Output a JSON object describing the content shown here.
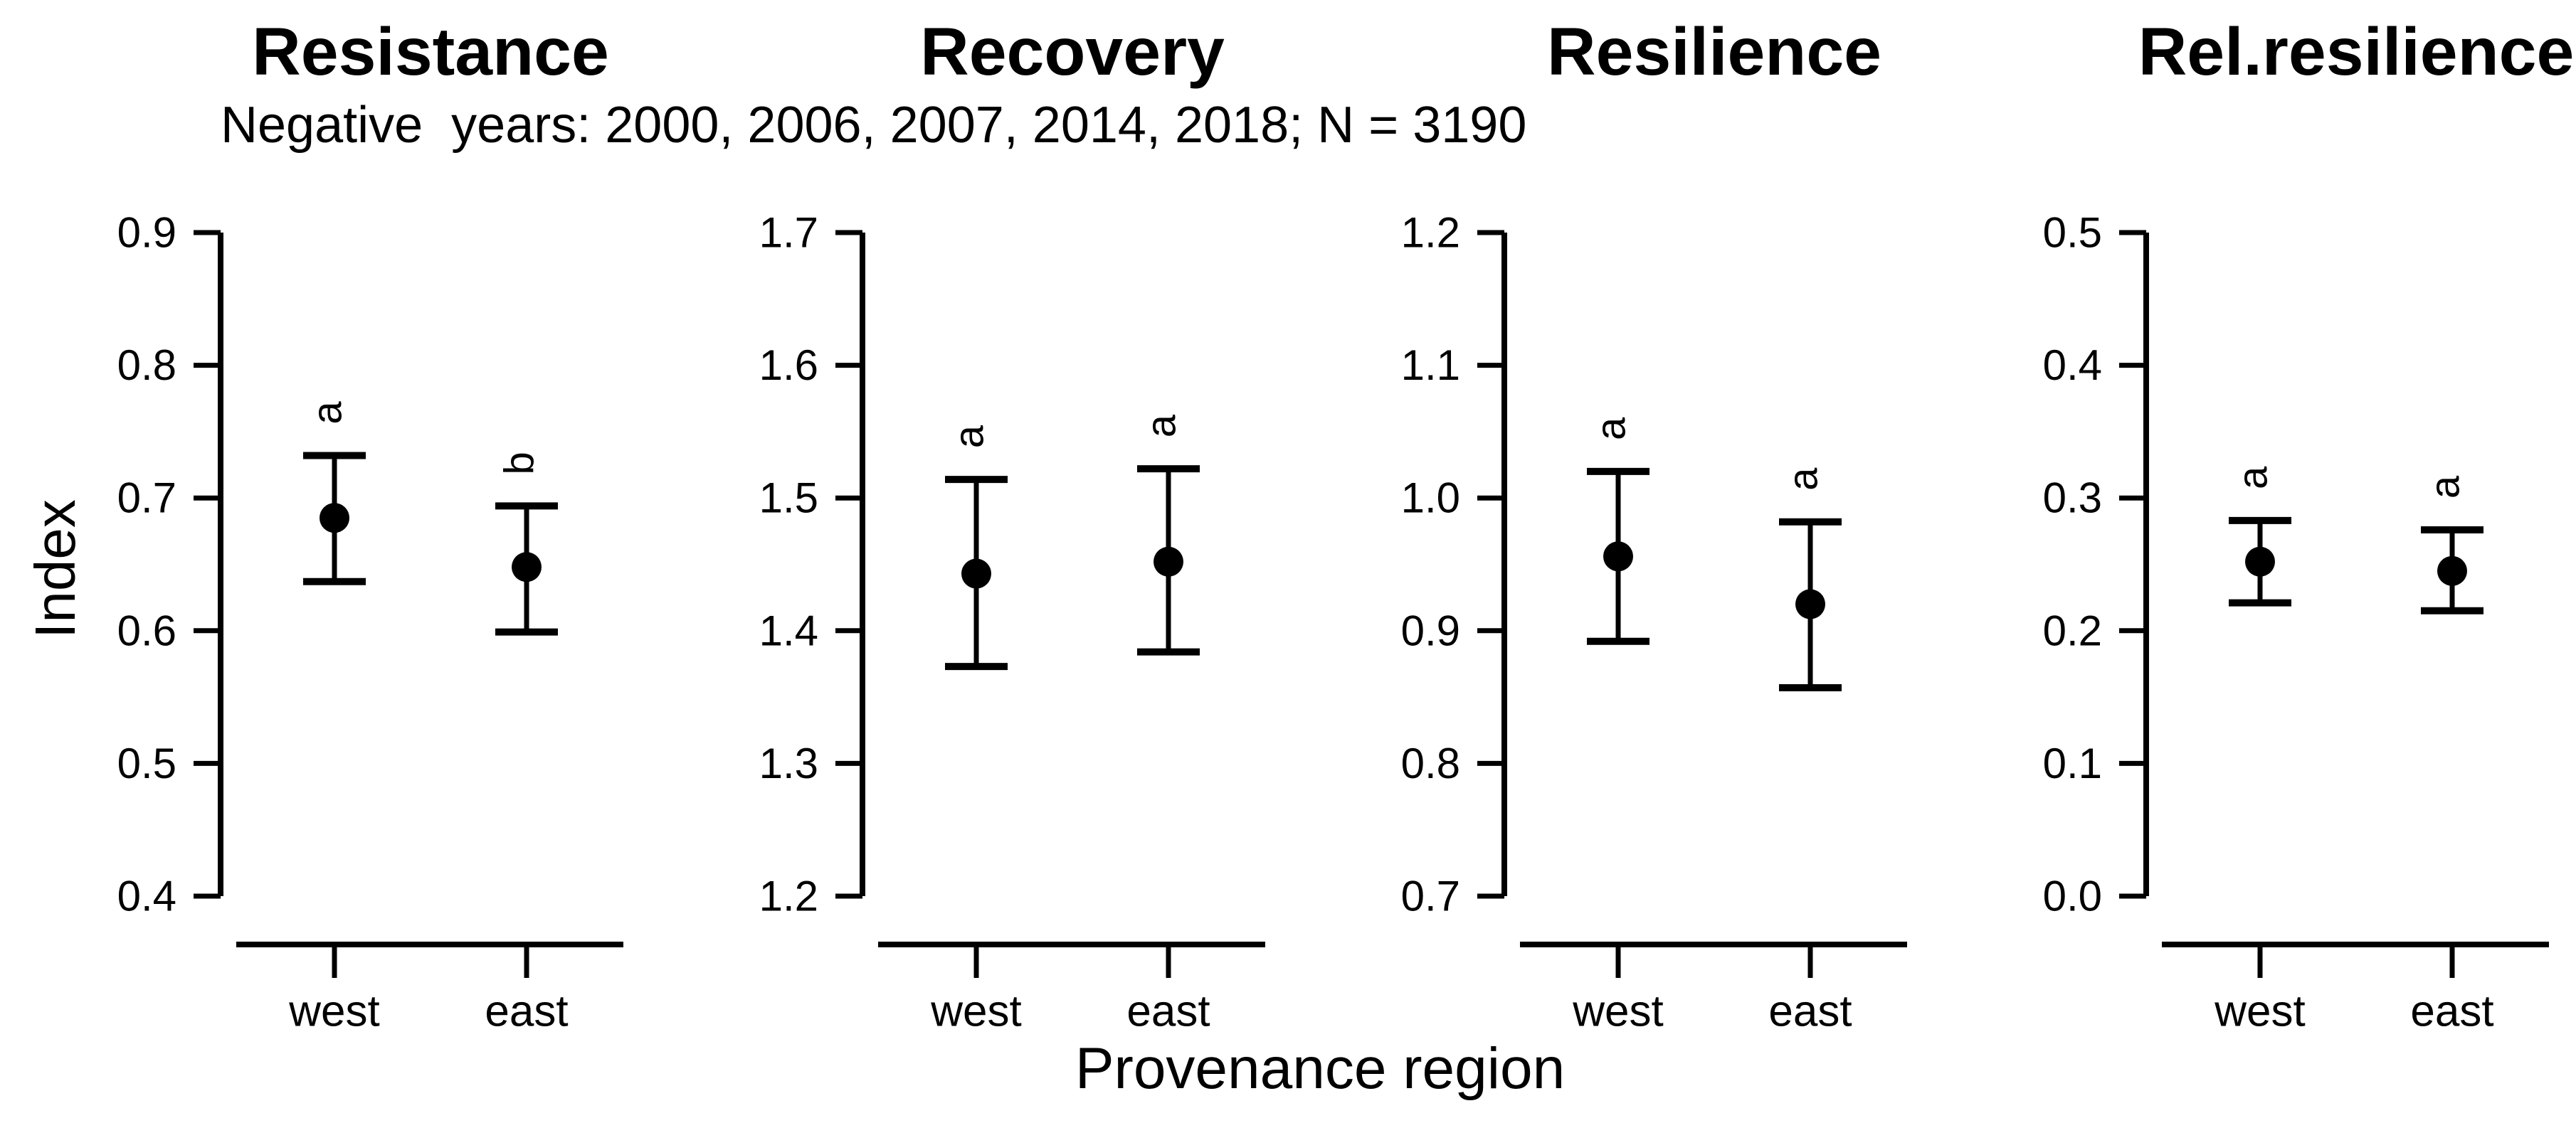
{
  "chart_data": {
    "type": "scatter",
    "subtitle": "Negative  years: 2000, 2006, 2007, 2014, 2018; N = 3190",
    "xlabel": "Provenance region",
    "ylabel": "Index",
    "categories": [
      "west",
      "east"
    ],
    "legend": "none",
    "grid": false,
    "marker": "filled-circle-with-error-bars",
    "panels": [
      {
        "title": "Resistance",
        "ylim": [
          0.4,
          0.9
        ],
        "yticks": [
          0.4,
          0.5,
          0.6,
          0.7,
          0.8,
          0.9
        ],
        "points": [
          {
            "category": "west",
            "mean": 0.685,
            "lo": 0.637,
            "hi": 0.732,
            "letter": "a"
          },
          {
            "category": "east",
            "mean": 0.648,
            "lo": 0.599,
            "hi": 0.694,
            "letter": "b"
          }
        ]
      },
      {
        "title": "Recovery",
        "ylim": [
          1.2,
          1.7
        ],
        "yticks": [
          1.2,
          1.3,
          1.4,
          1.5,
          1.6,
          1.7
        ],
        "points": [
          {
            "category": "west",
            "mean": 1.443,
            "lo": 1.373,
            "hi": 1.514,
            "letter": "a"
          },
          {
            "category": "east",
            "mean": 1.452,
            "lo": 1.384,
            "hi": 1.522,
            "letter": "a"
          }
        ]
      },
      {
        "title": "Resilience",
        "ylim": [
          0.7,
          1.2
        ],
        "yticks": [
          0.7,
          0.8,
          0.9,
          1.0,
          1.1,
          1.2
        ],
        "points": [
          {
            "category": "west",
            "mean": 0.956,
            "lo": 0.892,
            "hi": 1.02,
            "letter": "a"
          },
          {
            "category": "east",
            "mean": 0.92,
            "lo": 0.857,
            "hi": 0.982,
            "letter": "a"
          }
        ]
      },
      {
        "title": "Rel.resilience",
        "ylim": [
          0.0,
          0.5
        ],
        "yticks": [
          0.0,
          0.1,
          0.2,
          0.3,
          0.4,
          0.5
        ],
        "points": [
          {
            "category": "west",
            "mean": 0.252,
            "lo": 0.221,
            "hi": 0.283,
            "letter": "a"
          },
          {
            "category": "east",
            "mean": 0.245,
            "lo": 0.215,
            "hi": 0.276,
            "letter": "a"
          }
        ]
      }
    ],
    "colors": {
      "foreground": "#000000",
      "background": "#ffffff"
    }
  }
}
